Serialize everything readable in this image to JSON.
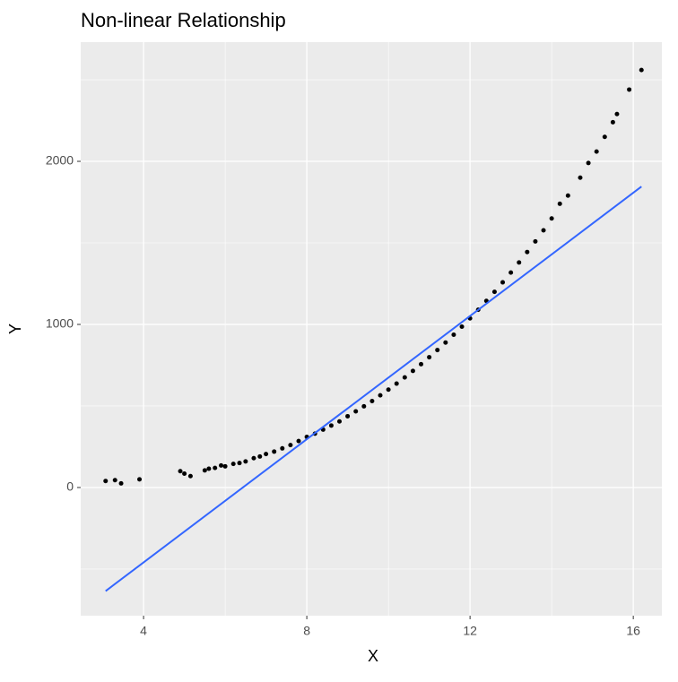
{
  "chart_data": {
    "type": "scatter",
    "title": "Non-linear Relationship",
    "x_label": "X",
    "y_label": "Y",
    "series": [
      {
        "color": "#000000",
        "x": [
          3.07,
          3.3,
          3.45,
          3.9,
          4.9,
          5.0,
          5.15,
          5.5,
          5.6,
          5.75,
          5.9,
          6.0,
          6.2,
          6.35,
          6.5,
          6.7,
          6.85,
          7.0,
          7.2,
          7.4,
          7.6,
          7.8,
          8.0,
          8.2,
          8.4,
          8.6,
          8.8,
          9.0,
          9.2,
          9.4,
          9.6,
          9.8,
          10.0,
          10.2,
          10.4,
          10.6,
          10.8,
          11.0,
          11.2,
          11.4,
          11.6,
          11.8,
          12.0,
          12.2,
          12.4,
          12.6,
          12.8,
          13.0,
          13.2,
          13.4,
          13.6,
          13.8,
          14.0,
          14.2,
          14.4,
          14.7,
          14.9,
          15.1,
          15.3,
          15.5,
          15.6,
          15.9,
          16.2
        ],
        "values": [
          40,
          45,
          25,
          50,
          100,
          85,
          70,
          105,
          115,
          120,
          135,
          130,
          145,
          150,
          160,
          180,
          190,
          205,
          220,
          240,
          260,
          285,
          310,
          330,
          355,
          380,
          405,
          437,
          467,
          498,
          530,
          565,
          600,
          637,
          675,
          715,
          756,
          799,
          843,
          889,
          937,
          986,
          1037,
          1090,
          1144,
          1200,
          1258,
          1318,
          1380,
          1444,
          1509,
          1577,
          1650,
          1740,
          1790,
          1900,
          1990,
          2060,
          2150,
          2240,
          2290,
          2440,
          2560
        ]
      }
    ],
    "fit_line": {
      "color": "#3366ff",
      "x": [
        3.07,
        16.2
      ],
      "values": [
        -635,
        1845
      ]
    },
    "xlim": [
      2.46,
      16.7
    ],
    "ylim": [
      -786,
      2731
    ],
    "xticks": [
      4,
      8,
      12,
      16
    ],
    "yticks": [
      0,
      1000,
      2000
    ],
    "minor_xticks": [
      6,
      10,
      14
    ],
    "minor_yticks": [
      -500,
      500,
      1500,
      2500
    ],
    "grid": true
  }
}
